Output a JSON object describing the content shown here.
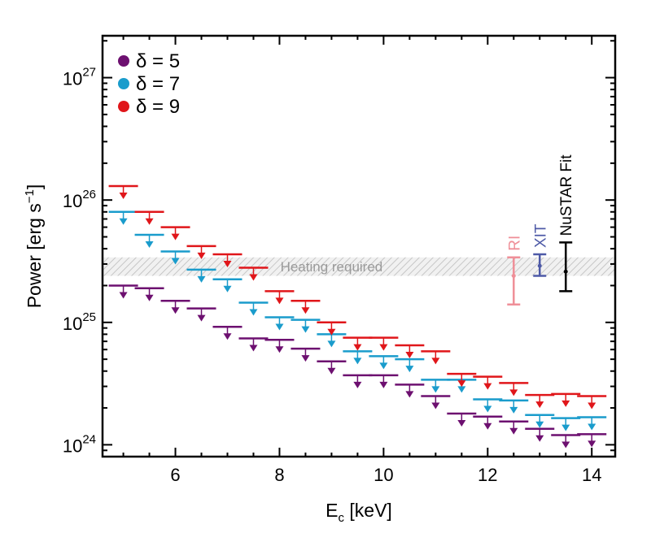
{
  "chart_data": {
    "type": "scatter",
    "title": "",
    "xlabel": "E",
    "xlabel_sub": "c",
    "xlabel_unit": " [keV]",
    "ylabel": "Power [erg s",
    "ylabel_sup": "−1",
    "ylabel_end": "]",
    "xlim": [
      4.6,
      14.45
    ],
    "ylim": [
      8e+23,
      2.2e+27
    ],
    "yscale": "log",
    "grid": false,
    "legend_position": "top-left",
    "xticks": [
      {
        "value": 6,
        "label": "6"
      },
      {
        "value": 8,
        "label": "8"
      },
      {
        "value": 10,
        "label": "10"
      },
      {
        "value": 12,
        "label": "12"
      },
      {
        "value": 14,
        "label": "14"
      }
    ],
    "yticks": [
      {
        "value": 1e+24,
        "base": "10",
        "exp": "24"
      },
      {
        "value": 1e+25,
        "base": "10",
        "exp": "25"
      },
      {
        "value": 1e+26,
        "base": "10",
        "exp": "26"
      },
      {
        "value": 1e+27,
        "base": "10",
        "exp": "27"
      }
    ],
    "upper_limit_series": [
      {
        "name": "δ = 5",
        "color": "#6d1070",
        "x": [
          5.0,
          5.5,
          6.0,
          6.5,
          7.0,
          7.5,
          8.0,
          8.5,
          9.0,
          9.5,
          10.0,
          10.5,
          11.0,
          11.5,
          12.0,
          12.5,
          13.0,
          13.5,
          14.0
        ],
        "y": [
          2e+25,
          1.9e+25,
          1.5e+25,
          1.3e+25,
          9.2e+24,
          7.4e+24,
          7.2e+24,
          6.1e+24,
          4.8e+24,
          3.7e+24,
          3.7e+24,
          3.1e+24,
          2.5e+24,
          1.8e+24,
          1.7e+24,
          1.55e+24,
          1.35e+24,
          1.2e+24,
          1.22e+24
        ]
      },
      {
        "name": "δ = 7",
        "color": "#1a9ccc",
        "x": [
          5.0,
          5.5,
          6.0,
          6.5,
          7.0,
          7.5,
          8.0,
          8.5,
          9.0,
          9.5,
          10.0,
          10.5,
          11.0,
          11.5,
          12.0,
          12.5,
          13.0,
          13.5,
          14.0
        ],
        "y": [
          8e+25,
          5.2e+25,
          3.8e+25,
          2.7e+25,
          2.25e+25,
          1.45e+25,
          1.1e+25,
          1.05e+25,
          8e+24,
          5.8e+24,
          5.3e+24,
          5e+24,
          3.4e+24,
          3.4e+24,
          2.35e+24,
          2.3e+24,
          1.75e+24,
          1.65e+24,
          1.68e+24
        ]
      },
      {
        "name": "δ = 9",
        "color": "#e0161a",
        "x": [
          5.0,
          5.5,
          6.0,
          6.5,
          7.0,
          7.5,
          8.0,
          8.5,
          9.0,
          9.5,
          10.0,
          10.5,
          11.0,
          11.5,
          12.0,
          12.5,
          13.0,
          13.5,
          14.0
        ],
        "y": [
          1.3e+26,
          8e+25,
          6e+25,
          4.2e+25,
          3.6e+25,
          2.8e+25,
          1.8e+25,
          1.5e+25,
          1e+25,
          7.5e+24,
          7.5e+24,
          6.5e+24,
          5.8e+24,
          3.8e+24,
          3.6e+24,
          3.2e+24,
          2.55e+24,
          2.6e+24,
          2.5e+24
        ]
      }
    ],
    "band": {
      "label": "Heating required",
      "ymin": 2.4e+25,
      "ymax": 3.4e+25
    },
    "measurements": [
      {
        "label": "RI",
        "x": 12.5,
        "y": 2.4e+25,
        "ymin": 1.4e+25,
        "ymax": 3.4e+25,
        "color": "#ef8f98"
      },
      {
        "label": "XIT",
        "x": 13.0,
        "y": 2.9e+25,
        "ymin": 2.4e+25,
        "ymax": 3.6e+25,
        "color": "#4e5aa7"
      },
      {
        "label": "NuSTAR Fit",
        "x": 13.5,
        "y": 2.6e+25,
        "ymin": 1.8e+25,
        "ymax": 4.5e+25,
        "color": "#000000"
      }
    ]
  }
}
